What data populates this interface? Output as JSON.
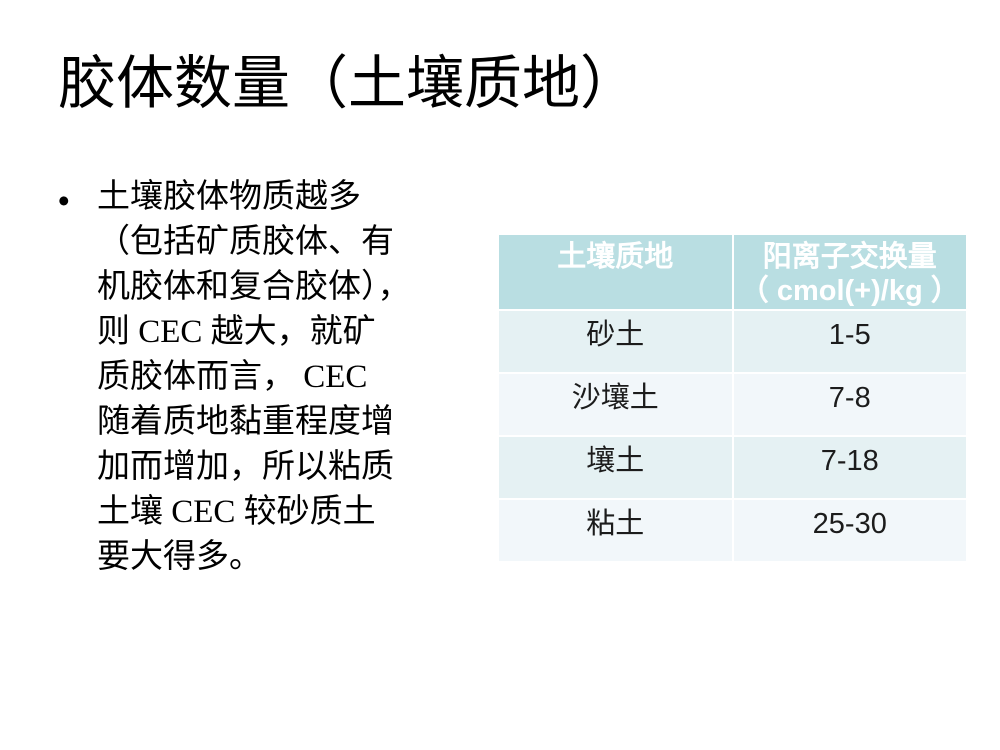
{
  "slide": {
    "title": "胶体数量（土壤质地）",
    "bullet": {
      "marker": "•",
      "lines": [
        "土壤胶体物质越多",
        "（包括矿质胶体、有",
        "机胶体和复合胶体），",
        "则 CEC 越大，就矿",
        "质胶体而言， CEC",
        "随着质地黏重程度增",
        "加而增加，所以粘质",
        "土壤 CEC 较砂质土",
        "要大得多。"
      ]
    },
    "table": {
      "columns": [
        {
          "label_lines": [
            "土壤质地"
          ]
        },
        {
          "label_lines": [
            "阳离子交换量",
            "（ cmol(+)/kg ）"
          ]
        }
      ],
      "rows": [
        {
          "texture": "砂土",
          "cec": "1-5"
        },
        {
          "texture": "沙壤土",
          "cec": "7-8"
        },
        {
          "texture": "壤土",
          "cec": "7-18"
        },
        {
          "texture": "粘土",
          "cec": "25-30"
        }
      ]
    },
    "colors": {
      "header_bg": "#b9dee2",
      "row_odd_bg": "#e5f1f3",
      "row_even_bg": "#f2f7fa",
      "header_text": "#ffffff",
      "body_text": "#000000"
    }
  }
}
